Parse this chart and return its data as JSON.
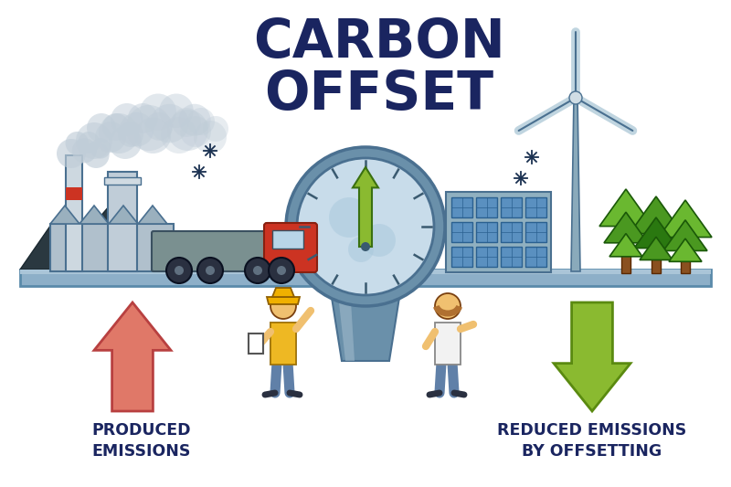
{
  "title": "CARBON\nOFFSET",
  "title_color": "#1a2560",
  "title_fontsize": 42,
  "label_left": "PRODUCED\nEMISSIONS",
  "label_right": "REDUCED EMISSIONS\nBY OFFSETTING",
  "label_color": "#1a2560",
  "label_fontsize": 12.5,
  "bg_color": "#ffffff",
  "platform_fill": "#8dafc8",
  "platform_edge": "#5a8aaa",
  "platform_light": "#aac5d8",
  "arrow_up_color": "#e07868",
  "arrow_up_edge": "#b84040",
  "arrow_down_color": "#8aba30",
  "arrow_down_edge": "#5a8a10",
  "clock_body": "#6a90aa",
  "clock_face": "#c8dcea",
  "clock_edge": "#4a7090",
  "smoke_color": "#c0cdd8",
  "factory_wall": "#b0c0cc",
  "factory_roof": "#9ab0be",
  "factory_edge": "#4a7090",
  "chimney_col": "#d0d8e0",
  "chimney_stripe": "#cc3322",
  "truck_body_col": "#7a9090",
  "truck_cab_col": "#cc3322",
  "truck_edge": "#3a5060",
  "wheel_col": "#2a3040",
  "solar_panel": "#5a90c0",
  "solar_edge": "#2a6090",
  "solar_frame": "#90b0c0",
  "wind_tower": "#8aaabb",
  "wind_blade": "#c0d5e0",
  "tree_bright": "#6ab830",
  "tree_mid": "#4a9820",
  "tree_dark": "#2a7810",
  "trunk_col": "#8a5020",
  "person_skin": "#f0c070",
  "person_hair": "#b07030",
  "worker_vest": "#f0b000",
  "worker_helm": "#f0b000",
  "person_shirt": "#f0f0f0",
  "pants_blue": "#6080a8",
  "shoe_col": "#2a3040"
}
